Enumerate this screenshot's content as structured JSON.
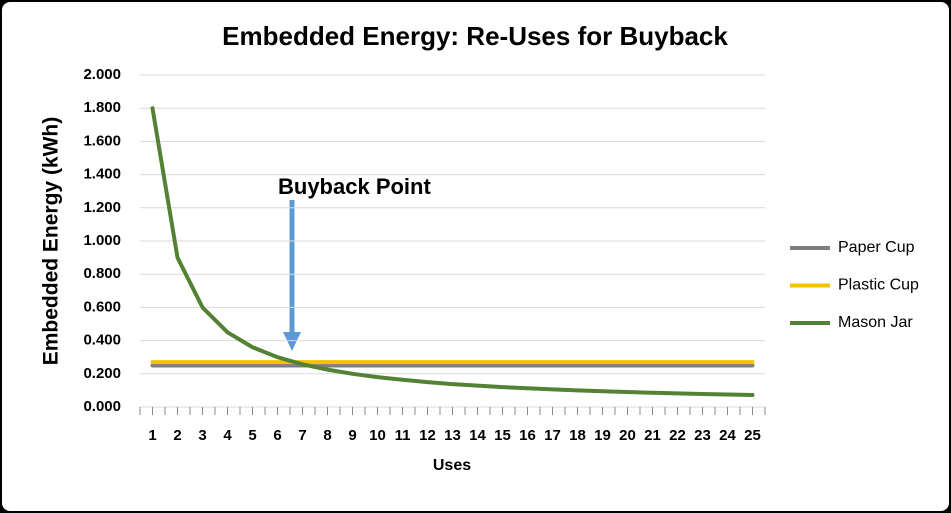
{
  "chart_data": {
    "type": "line",
    "title": "Embedded Energy: Re-Uses for Buyback",
    "y_label": "Embedded Energy (kWh)",
    "x_label": "Uses",
    "annotation": "Buyback Point",
    "categories": [
      "1",
      "2",
      "3",
      "4",
      "5",
      "6",
      "7",
      "8",
      "9",
      "10",
      "11",
      "12",
      "13",
      "14",
      "15",
      "16",
      "17",
      "18",
      "19",
      "20",
      "21",
      "22",
      "23",
      "24",
      "25"
    ],
    "series": [
      {
        "name": "Paper Cup",
        "color": "#7f7f7f",
        "values": [
          0.25,
          0.25,
          0.25,
          0.25,
          0.25,
          0.25,
          0.25,
          0.25,
          0.25,
          0.25,
          0.25,
          0.25,
          0.25,
          0.25,
          0.25,
          0.25,
          0.25,
          0.25,
          0.25,
          0.25,
          0.25,
          0.25,
          0.25,
          0.25,
          0.25
        ]
      },
      {
        "name": "Plastic Cup",
        "color": "#f5c200",
        "values": [
          0.27,
          0.27,
          0.27,
          0.27,
          0.27,
          0.27,
          0.27,
          0.27,
          0.27,
          0.27,
          0.27,
          0.27,
          0.27,
          0.27,
          0.27,
          0.27,
          0.27,
          0.27,
          0.27,
          0.27,
          0.27,
          0.27,
          0.27,
          0.27,
          0.27
        ]
      },
      {
        "name": "Mason Jar",
        "color": "#548235",
        "values": [
          1.8,
          0.9,
          0.6,
          0.45,
          0.36,
          0.3,
          0.257,
          0.225,
          0.2,
          0.18,
          0.164,
          0.15,
          0.138,
          0.129,
          0.12,
          0.113,
          0.106,
          0.1,
          0.095,
          0.09,
          0.086,
          0.082,
          0.078,
          0.075,
          0.072
        ]
      }
    ],
    "ylim": [
      0,
      2
    ],
    "yticks": [
      {
        "value": 0,
        "label": "0.000"
      },
      {
        "value": 0.2,
        "label": "0.200"
      },
      {
        "value": 0.4,
        "label": "0.400"
      },
      {
        "value": 0.6,
        "label": "0.600"
      },
      {
        "value": 0.8,
        "label": "0.800"
      },
      {
        "value": 1,
        "label": "1.000"
      },
      {
        "value": 1.2,
        "label": "1.200"
      },
      {
        "value": 1.4,
        "label": "1.400"
      },
      {
        "value": 1.6,
        "label": "1.600"
      },
      {
        "value": 1.8,
        "label": "1.800"
      },
      {
        "value": 2,
        "label": "2.000"
      }
    ],
    "grid": true,
    "legend": "right"
  }
}
